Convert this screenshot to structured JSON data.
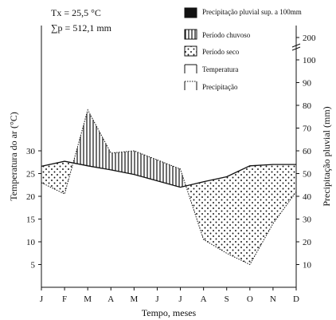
{
  "chart_data": {
    "type": "line",
    "stats": [
      "Tx = 25,5 °C",
      "∑p = 512,1 mm"
    ],
    "xlabel": "Tempo, meses",
    "ylabel_left": "Temperatura do ar (°C)",
    "ylabel_right": "Precipitação pluvial (mm)",
    "categories": [
      "J",
      "F",
      "M",
      "A",
      "M",
      "J",
      "J",
      "A",
      "S",
      "O",
      "N",
      "D"
    ],
    "left_axis": {
      "min": 0,
      "max": 40,
      "ticks": [
        5,
        10,
        15,
        20,
        25,
        30
      ],
      "unit": "°C"
    },
    "right_axis": {
      "min": 0,
      "max": 200,
      "ticks": [
        10,
        20,
        30,
        40,
        50,
        60,
        70,
        80,
        90,
        100,
        200
      ],
      "break_between": [
        100,
        200
      ]
    },
    "series": [
      {
        "name": "Temperatura",
        "axis": "left",
        "style": "solid",
        "values": [
          26.6,
          27.7,
          26.7,
          25.8,
          24.8,
          23.4,
          22.0,
          23.2,
          24.3,
          26.7,
          27.0,
          27.0
        ]
      },
      {
        "name": "Precipitação",
        "axis": "right",
        "style": "dotted",
        "values": [
          46,
          41,
          78,
          59,
          60,
          56,
          52,
          21,
          15,
          10,
          28,
          42
        ]
      }
    ],
    "legend": [
      {
        "label": "Precipitação pluvial sup. a 100mm",
        "swatch": "solid-black"
      },
      {
        "label": "Período chuvoso",
        "swatch": "vertical-hatch"
      },
      {
        "label": "Período seco",
        "swatch": "dots"
      },
      {
        "label": "Temperatura",
        "swatch": "solid-line"
      },
      {
        "label": "Precipitação",
        "swatch": "dotted-line"
      }
    ],
    "legend_position": "top-right",
    "grid": false,
    "colors": {
      "ink": "#111111",
      "background": "#ffffff"
    }
  }
}
